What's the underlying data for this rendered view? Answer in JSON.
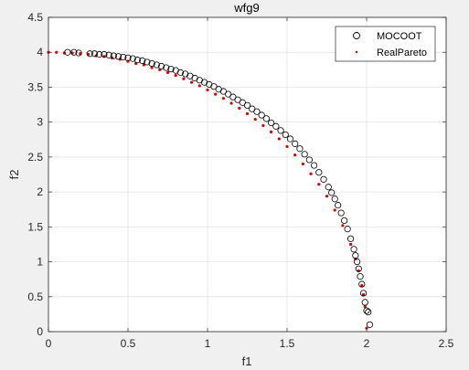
{
  "chart_data": {
    "type": "scatter",
    "title": "wfg9",
    "xlabel": "f1",
    "ylabel": "f2",
    "xlim": [
      0,
      2.5
    ],
    "ylim": [
      0,
      4.5
    ],
    "xticks": [
      "0",
      "0.5",
      "1",
      "1.5",
      "2",
      "2.5"
    ],
    "yticks": [
      "0",
      "0.5",
      "1",
      "1.5",
      "2",
      "2.5",
      "3",
      "3.5",
      "4",
      "4.5"
    ],
    "grid": true,
    "legend_position": "top-right",
    "series": [
      {
        "name": "MOCOOT",
        "marker": "open-circle",
        "color": "#000000",
        "x": [
          0.12,
          0.16,
          0.19,
          0.26,
          0.29,
          0.32,
          0.35,
          0.38,
          0.41,
          0.44,
          0.47,
          0.5,
          0.53,
          0.56,
          0.59,
          0.62,
          0.65,
          0.68,
          0.71,
          0.74,
          0.77,
          0.8,
          0.83,
          0.86,
          0.89,
          0.92,
          0.95,
          0.98,
          1.01,
          1.04,
          1.07,
          1.1,
          1.13,
          1.16,
          1.19,
          1.22,
          1.25,
          1.28,
          1.31,
          1.34,
          1.37,
          1.4,
          1.43,
          1.46,
          1.49,
          1.52,
          1.55,
          1.58,
          1.61,
          1.64,
          1.67,
          1.7,
          1.73,
          1.76,
          1.78,
          1.8,
          1.82,
          1.84,
          1.86,
          1.88,
          1.9,
          1.92,
          1.93,
          1.94,
          1.95,
          1.96,
          1.97,
          1.98,
          1.99,
          2.0,
          2.01,
          2.02
        ],
        "y": [
          4.0,
          4.0,
          3.99,
          3.98,
          3.98,
          3.97,
          3.97,
          3.96,
          3.95,
          3.94,
          3.93,
          3.92,
          3.91,
          3.89,
          3.88,
          3.86,
          3.84,
          3.82,
          3.8,
          3.78,
          3.76,
          3.74,
          3.71,
          3.69,
          3.66,
          3.63,
          3.6,
          3.57,
          3.54,
          3.51,
          3.47,
          3.44,
          3.4,
          3.36,
          3.32,
          3.28,
          3.24,
          3.19,
          3.15,
          3.1,
          3.05,
          2.99,
          2.94,
          2.88,
          2.82,
          2.76,
          2.69,
          2.62,
          2.54,
          2.46,
          2.38,
          2.28,
          2.18,
          2.07,
          1.99,
          1.9,
          1.81,
          1.7,
          1.59,
          1.47,
          1.33,
          1.18,
          1.09,
          1.0,
          0.9,
          0.79,
          0.68,
          0.55,
          0.42,
          0.3,
          0.28,
          0.1
        ]
      },
      {
        "name": "RealPareto",
        "marker": "dot",
        "color": "#e00000",
        "x": [
          0.0,
          0.05,
          0.1,
          0.15,
          0.2,
          0.25,
          0.3,
          0.35,
          0.4,
          0.45,
          0.5,
          0.55,
          0.6,
          0.65,
          0.7,
          0.75,
          0.8,
          0.85,
          0.9,
          0.95,
          1.0,
          1.05,
          1.1,
          1.15,
          1.2,
          1.25,
          1.3,
          1.35,
          1.4,
          1.45,
          1.5,
          1.55,
          1.6,
          1.65,
          1.7,
          1.75,
          1.8,
          1.85,
          1.9,
          1.93,
          1.95,
          1.97,
          1.98,
          1.99,
          2.0
        ],
        "y": [
          4.0,
          4.0,
          3.99,
          3.99,
          3.98,
          3.97,
          3.95,
          3.94,
          3.92,
          3.9,
          3.87,
          3.84,
          3.82,
          3.78,
          3.75,
          3.71,
          3.67,
          3.62,
          3.57,
          3.52,
          3.46,
          3.4,
          3.34,
          3.27,
          3.2,
          3.12,
          3.04,
          2.95,
          2.86,
          2.76,
          2.65,
          2.53,
          2.4,
          2.26,
          2.11,
          1.94,
          1.74,
          1.52,
          1.25,
          1.04,
          0.87,
          0.66,
          0.53,
          0.36,
          0.05
        ]
      }
    ]
  }
}
